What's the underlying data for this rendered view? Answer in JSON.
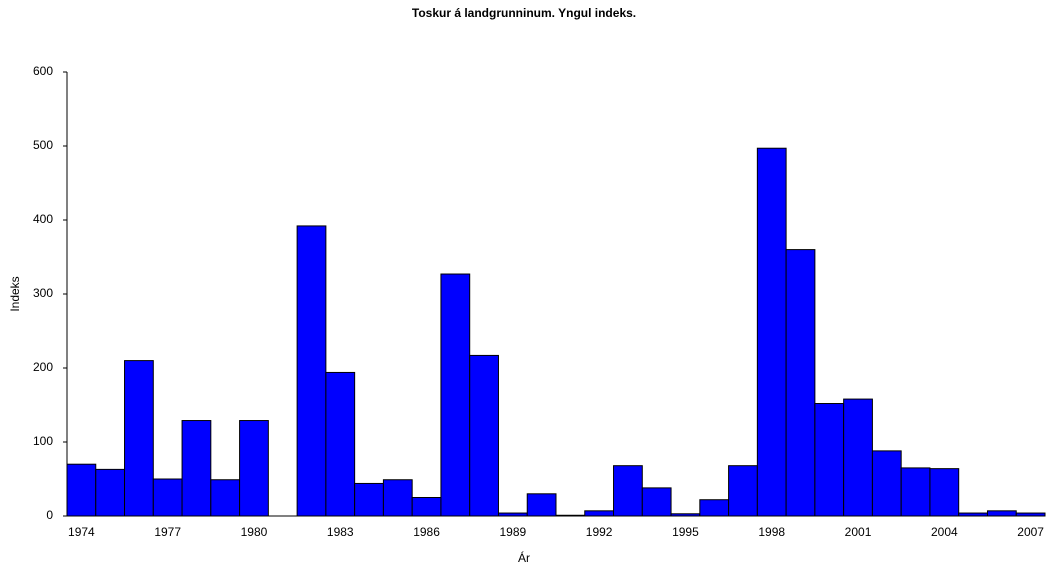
{
  "chart_data": {
    "type": "bar",
    "title": "Toskur á landgrunninum. Yngul indeks.",
    "x_label": "Ár",
    "y_label": "Indeks",
    "categories": [
      "1974",
      null,
      null,
      "1977",
      null,
      null,
      "1980",
      null,
      null,
      "1983",
      null,
      null,
      "1986",
      null,
      null,
      "1989",
      null,
      null,
      "1992",
      null,
      null,
      "1995",
      null,
      null,
      "1998",
      null,
      null,
      "2001",
      null,
      null,
      "2004",
      null,
      null,
      "2007"
    ],
    "values": [
      70,
      63,
      210,
      50,
      129,
      49,
      129,
      null,
      392,
      194,
      44,
      49,
      25,
      327,
      217,
      4,
      30,
      1,
      7,
      68,
      38,
      3,
      22,
      68,
      497,
      360,
      152,
      158,
      88,
      65,
      64,
      4,
      7,
      4
    ],
    "color": "#0000ff",
    "ylim": [
      0,
      600
    ],
    "yticks": [
      0,
      100,
      200,
      300,
      400,
      500,
      600
    ],
    "grid": false
  }
}
